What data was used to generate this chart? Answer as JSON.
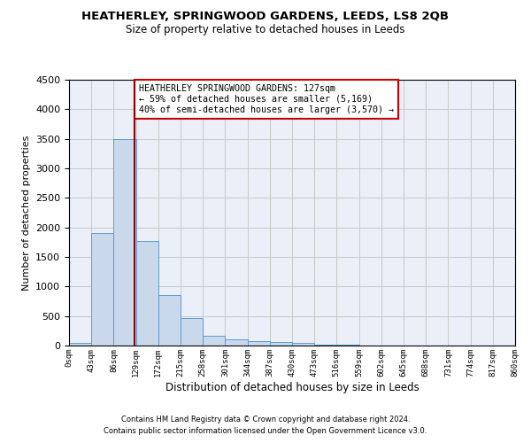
{
  "title": "HEATHERLEY, SPRINGWOOD GARDENS, LEEDS, LS8 2QB",
  "subtitle": "Size of property relative to detached houses in Leeds",
  "xlabel": "Distribution of detached houses by size in Leeds",
  "ylabel": "Number of detached properties",
  "bin_edges": [
    0,
    43,
    86,
    129,
    172,
    215,
    258,
    301,
    344,
    387,
    430,
    473,
    516,
    559,
    602,
    645,
    688,
    731,
    774,
    817,
    860
  ],
  "bar_heights": [
    50,
    1900,
    3500,
    1770,
    850,
    460,
    160,
    100,
    70,
    55,
    40,
    20,
    10,
    2,
    1,
    1,
    0,
    0,
    0,
    0
  ],
  "bar_color": "#c9d9eb",
  "bar_edgecolor": "#5b9bd5",
  "vline_x": 127,
  "vline_color": "#8b0000",
  "ylim": [
    0,
    4500
  ],
  "yticks": [
    0,
    500,
    1000,
    1500,
    2000,
    2500,
    3000,
    3500,
    4000,
    4500
  ],
  "grid_color": "#c8c8c8",
  "bg_color": "#eaeff8",
  "annotation_text": "HEATHERLEY SPRINGWOOD GARDENS: 127sqm\n← 59% of detached houses are smaller (5,169)\n40% of semi-detached houses are larger (3,570) →",
  "annotation_boxcolor": "white",
  "annotation_edgecolor": "#cc0000",
  "footer1": "Contains HM Land Registry data © Crown copyright and database right 2024.",
  "footer2": "Contains public sector information licensed under the Open Government Licence v3.0."
}
